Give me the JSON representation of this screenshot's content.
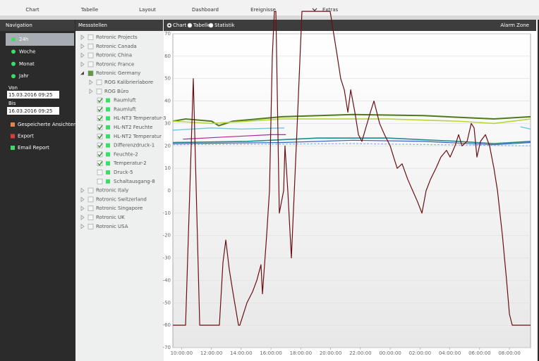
{
  "menu": {
    "items": [
      "Chart",
      "Tabelle",
      "Layout",
      "Dashboard",
      "Ereignisse",
      "Extras"
    ]
  },
  "navigation": {
    "title": "Navigation",
    "ranges": [
      "24h",
      "Woche",
      "Monat",
      "Jahr"
    ],
    "selected": 0,
    "von_label": "Von",
    "von_value": "15.03.2016 09:25",
    "bis_label": "Bis",
    "bis_value": "16.03.2016 09:25",
    "actions": [
      {
        "label": "Gespeicherte Ansichten",
        "color": "#e8834a"
      },
      {
        "label": "Export",
        "color": "#e03b3b"
      },
      {
        "label": "Email Report",
        "color": "#3ddc6a"
      }
    ]
  },
  "messstellen": {
    "title": "Messstellen",
    "tree": [
      {
        "label": "Rotronic Projects",
        "level": 0,
        "checked": false
      },
      {
        "label": "Rotronic Canada",
        "level": 0,
        "checked": false
      },
      {
        "label": "Rotronic China",
        "level": 0,
        "checked": false
      },
      {
        "label": "Rotronic France",
        "level": 0,
        "checked": false
      },
      {
        "label": "Rotronic Germany",
        "level": 0,
        "checked": false,
        "expanded": true
      },
      {
        "label": "ROG Kalibrierlabore",
        "level": 1,
        "checked": false
      },
      {
        "label": "ROG Büro",
        "level": 1,
        "checked": false
      },
      {
        "label": "Raumluft",
        "level": 2,
        "checked": true
      },
      {
        "label": "Raumluft",
        "level": 2,
        "checked": true
      },
      {
        "label": "HL-NT3 Temperatur-3",
        "level": 2,
        "checked": true
      },
      {
        "label": "HL-NT2 Feuchte",
        "level": 2,
        "checked": true
      },
      {
        "label": "HL-NT2 Temperatur",
        "level": 2,
        "checked": true
      },
      {
        "label": "Differenzdruck-1",
        "level": 2,
        "checked": true
      },
      {
        "label": "Feuchte-2",
        "level": 2,
        "checked": true
      },
      {
        "label": "Temperatur-2",
        "level": 2,
        "checked": true
      },
      {
        "label": "Druck-5",
        "level": 2,
        "checked": false
      },
      {
        "label": "Schaltausgang-8",
        "level": 2,
        "checked": false
      },
      {
        "label": "Rotronic Italy",
        "level": 0,
        "checked": false
      },
      {
        "label": "Rotronic Switzerland",
        "level": 0,
        "checked": false
      },
      {
        "label": "Rotronic Singapore",
        "level": 0,
        "checked": false
      },
      {
        "label": "Rotronic UK",
        "level": 0,
        "checked": false
      },
      {
        "label": "Rotronic USA",
        "level": 0,
        "checked": false
      }
    ]
  },
  "chart_header": {
    "views": [
      "Chart",
      "Tabelle",
      "Statistik"
    ],
    "selected": 0,
    "alarm": "Alarm Zone"
  },
  "chart_data": {
    "type": "line",
    "grid": true,
    "xlim": [
      9.4167,
      33.4167
    ],
    "ylim": [
      -70,
      70
    ],
    "xticks": [
      {
        "value": 10,
        "label": "10:00:00"
      },
      {
        "value": 12,
        "label": "12:00:00"
      },
      {
        "value": 14,
        "label": "14:00:00"
      },
      {
        "value": 16,
        "label": "16:00:00"
      },
      {
        "value": 18,
        "label": "18:00:00"
      },
      {
        "value": 20,
        "label": "20:00:00"
      },
      {
        "value": 22,
        "label": "22:00:00"
      },
      {
        "value": 24,
        "label": "00:00:00"
      },
      {
        "value": 26,
        "label": "02:00:00"
      },
      {
        "value": 28,
        "label": "04:00:00"
      },
      {
        "value": 30,
        "label": "06:00:00"
      },
      {
        "value": 32,
        "label": "08:00:00"
      }
    ],
    "yticks": [
      70,
      60,
      50,
      40,
      30,
      20,
      10,
      0,
      -10,
      -20,
      -30,
      -40,
      -50,
      -60,
      -70
    ],
    "series": [
      {
        "color": "#4d7a1c",
        "width": 2,
        "x": [
          9.42,
          10.27,
          12.02,
          12.5,
          13.44,
          16.75,
          21.49,
          26.22,
          30.96,
          33.42
        ],
        "values": [
          31,
          32,
          31,
          29,
          31,
          33,
          34,
          33.5,
          32,
          33
        ]
      },
      {
        "color": "#b8d63a",
        "width": 1.6,
        "x": [
          9.42,
          12.02,
          16.75,
          23.86,
          28.59,
          30.96,
          33.42
        ],
        "values": [
          31,
          30,
          32,
          32,
          31,
          30,
          32
        ]
      },
      {
        "color": "#6ec6e0",
        "width": 1.4,
        "x": [
          9.42,
          12.0,
          14.0,
          16.9,
          24.0,
          32.75,
          33.42
        ],
        "values": [
          27,
          28,
          27.5,
          28,
          null,
          28.5,
          27.5
        ]
      },
      {
        "color": "#b02a9a",
        "width": 1.2,
        "x": [
          10.1,
          13.0,
          16.0,
          17.0
        ],
        "values": [
          23,
          24,
          25,
          25
        ]
      },
      {
        "color": "#1f8a8a",
        "width": 1.6,
        "x": [
          9.42,
          14.39,
          19.12,
          23.86,
          28.59,
          30.96,
          33.42
        ],
        "values": [
          21.5,
          22,
          23.5,
          23.5,
          22,
          21,
          22
        ]
      },
      {
        "color": "#3a5fbf",
        "width": 1.2,
        "x": [
          9.42,
          16.75,
          21.49,
          26.22,
          30.96,
          33.42
        ],
        "values": [
          21,
          21.5,
          22.5,
          22,
          20.5,
          21.5
        ]
      },
      {
        "color": "#8ab4e6",
        "width": 1.2,
        "dash": true,
        "x": [
          9.42,
          21.49,
          33.42
        ],
        "values": [
          20.5,
          21,
          20
        ]
      },
      {
        "color": "#6b0f12",
        "width": 1.2,
        "x": [
          9.42,
          10.27,
          10.79,
          11.22,
          12.54,
          12.78,
          12.97,
          13.2,
          13.44,
          13.82,
          13.91,
          14.39,
          14.77,
          15.05,
          15.33,
          15.43,
          15.71,
          15.9,
          16.09,
          16.23,
          16.33,
          16.56,
          16.85,
          16.94,
          17.13,
          17.37,
          17.7,
          18.08,
          19.97,
          20.45,
          20.68,
          20.92,
          21.16,
          21.35,
          21.63,
          21.87,
          22.1,
          22.67,
          22.91,
          23.29,
          23.62,
          24.0,
          24.23,
          24.47,
          24.8,
          25.18,
          25.51,
          25.84,
          26.13,
          26.41,
          26.7,
          27.07,
          27.4,
          27.78,
          28.02,
          28.35,
          28.59,
          28.82,
          29.16,
          29.44,
          29.63,
          29.82,
          30.06,
          30.39,
          30.67,
          30.96,
          31.2,
          31.53,
          31.81,
          32.0,
          32.19,
          33.42
        ],
        "values": [
          -60,
          -60,
          50,
          -60,
          -60,
          -32,
          -22,
          -35,
          -45,
          -60,
          -60,
          -50,
          -45,
          -40,
          -33,
          -46,
          -20,
          0,
          60,
          80,
          80,
          -10,
          0,
          20,
          0,
          -30,
          20,
          80,
          80,
          60,
          50,
          45,
          35,
          45,
          35,
          25,
          22,
          35,
          40,
          30,
          25,
          20,
          15,
          10,
          12,
          5,
          0,
          -5,
          -10,
          0,
          5,
          10,
          15,
          18,
          15,
          20,
          25,
          20,
          22,
          30,
          28,
          15,
          22,
          25,
          20,
          10,
          0,
          -20,
          -40,
          -55,
          -60,
          -60
        ]
      }
    ]
  }
}
